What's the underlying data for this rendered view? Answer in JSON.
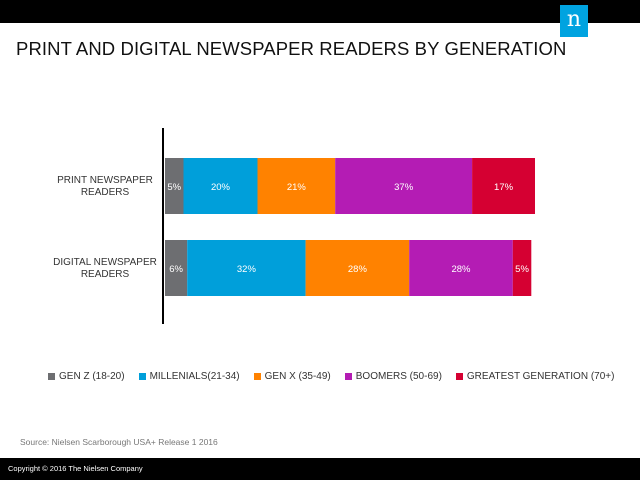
{
  "title": "PRINT AND DIGITAL NEWSPAPER READERS BY GENERATION",
  "logo": {
    "glyph": "n",
    "color": "#00a3e0"
  },
  "source": "Source: Nielsen Scarborough USA+ Release 1 2016",
  "footer": "Copyright © 2016 The Nielsen Company",
  "chart_data": {
    "type": "bar",
    "orientation": "horizontal",
    "stacked": true,
    "normalized_percent": true,
    "title": "PRINT AND DIGITAL NEWSPAPER READERS BY GENERATION",
    "categories": [
      "PRINT NEWSPAPER READERS",
      "DIGITAL NEWSPAPER READERS"
    ],
    "category_lines": [
      [
        "PRINT NEWSPAPER",
        "READERS"
      ],
      [
        "DIGITAL NEWSPAPER",
        "READERS"
      ]
    ],
    "series": [
      {
        "name": "GEN Z (18-20)",
        "color": "#6d6e71",
        "values": [
          5,
          6
        ],
        "labels": [
          "5%",
          "6%"
        ]
      },
      {
        "name": "MILLENIALS(21-34)",
        "color": "#009fda",
        "values": [
          20,
          32
        ],
        "labels": [
          "20%",
          "32%"
        ]
      },
      {
        "name": "GEN X (35-49)",
        "color": "#ff8200",
        "values": [
          21,
          28
        ],
        "labels": [
          "21%",
          "28%"
        ]
      },
      {
        "name": "BOOMERS (50-69)",
        "color": "#b41cb4",
        "values": [
          37,
          28
        ],
        "labels": [
          "37%",
          "28%"
        ]
      },
      {
        "name": "GREATEST GENERATION (70+)",
        "color": "#d50032",
        "values": [
          17,
          5
        ],
        "labels": [
          "17%",
          "5%"
        ]
      }
    ],
    "xlim": [
      0,
      100
    ],
    "xlabel": "",
    "ylabel": "",
    "grid": false,
    "legend_position": "bottom"
  }
}
